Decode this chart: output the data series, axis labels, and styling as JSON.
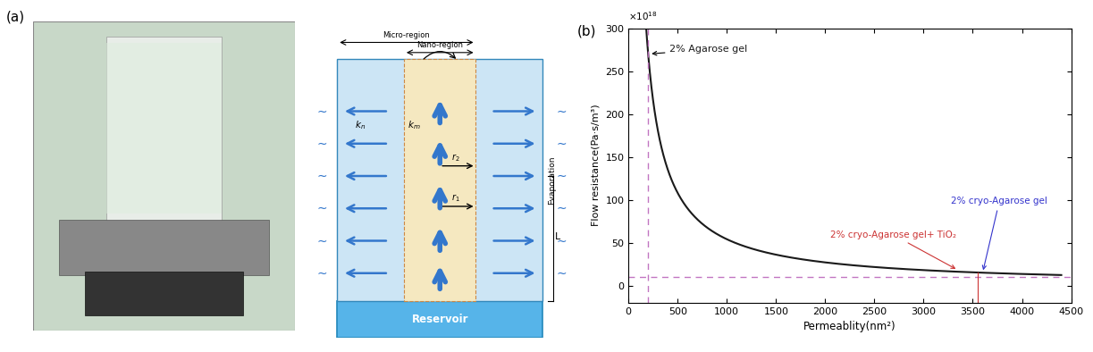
{
  "panel_b": {
    "title": "(b)",
    "xlabel": "Permeablity(nm²)",
    "ylabel": "Flow resistance(Pa·s/m³)",
    "xlim": [
      0,
      4500
    ],
    "ylim": [
      -20,
      300
    ],
    "curve_color": "#1a1a1a",
    "dashed_line_y": 10,
    "agarose_point_x": 200,
    "agarose_point_y": 270,
    "cryo_point_x": 3600,
    "cryo_point_y": 15,
    "cryo_tio2_point_x": 3350,
    "cryo_tio2_point_y": 18,
    "vline_x": 3550,
    "annotation_agarose": "2% Agarose gel",
    "annotation_cryo": "2% cryo-Agarose gel",
    "annotation_cryo_tio2": "2% cryo-Agarose gel+ TiO₂",
    "annotation_agarose_color": "#1a1a1a",
    "annotation_cryo_color": "#3333cc",
    "annotation_cryo_tio2_color": "#cc3333",
    "dashed_hline_color": "#bb66bb",
    "dashed_vline_agarose_color": "#bb66bb"
  },
  "panel_a": {
    "title": "(a)"
  }
}
